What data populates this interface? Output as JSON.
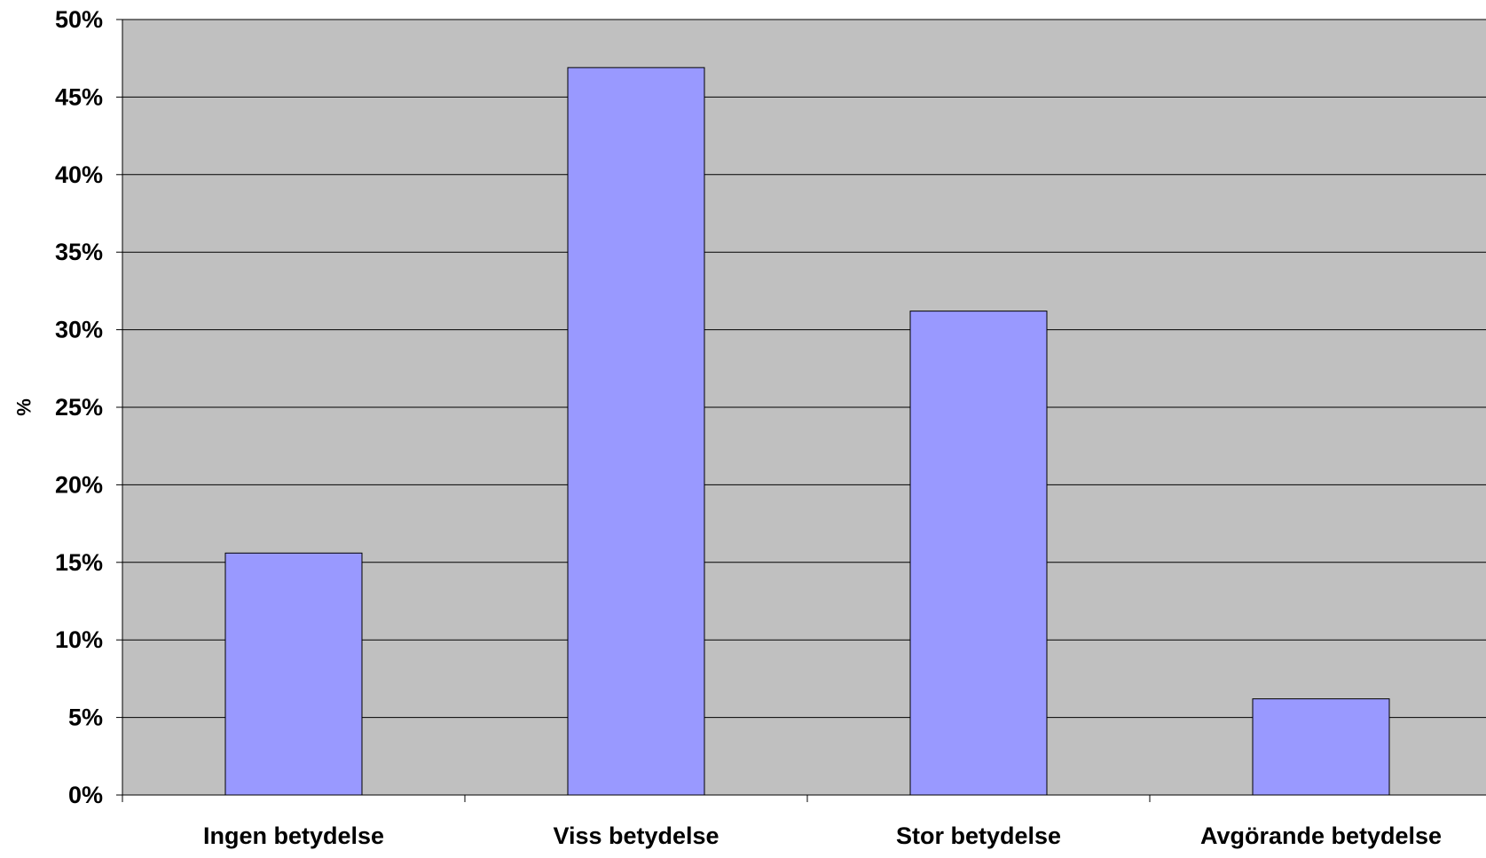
{
  "colors": {
    "plot_background": "#C0C0C0",
    "bar_fill": "#9999FF",
    "bar_stroke": "#000000",
    "grid": "#000000",
    "page_background": "#FFFFFF"
  },
  "chart_data": {
    "type": "bar",
    "title": "",
    "xlabel": "",
    "ylabel": "%",
    "categories": [
      "Ingen betydelse",
      "Viss betydelse",
      "Stor betydelse",
      "Avgörande betydelse"
    ],
    "series": [
      {
        "values": [
          15.6,
          46.9,
          31.2,
          6.2
        ]
      }
    ],
    "ylim": [
      0,
      50
    ],
    "y_tick_step": 5,
    "y_tick_format": "{v}%",
    "y_ticks": [
      "0%",
      "5%",
      "10%",
      "15%",
      "20%",
      "25%",
      "30%",
      "35%",
      "40%",
      "45%",
      "50%"
    ],
    "grid": true,
    "legend": "none"
  }
}
